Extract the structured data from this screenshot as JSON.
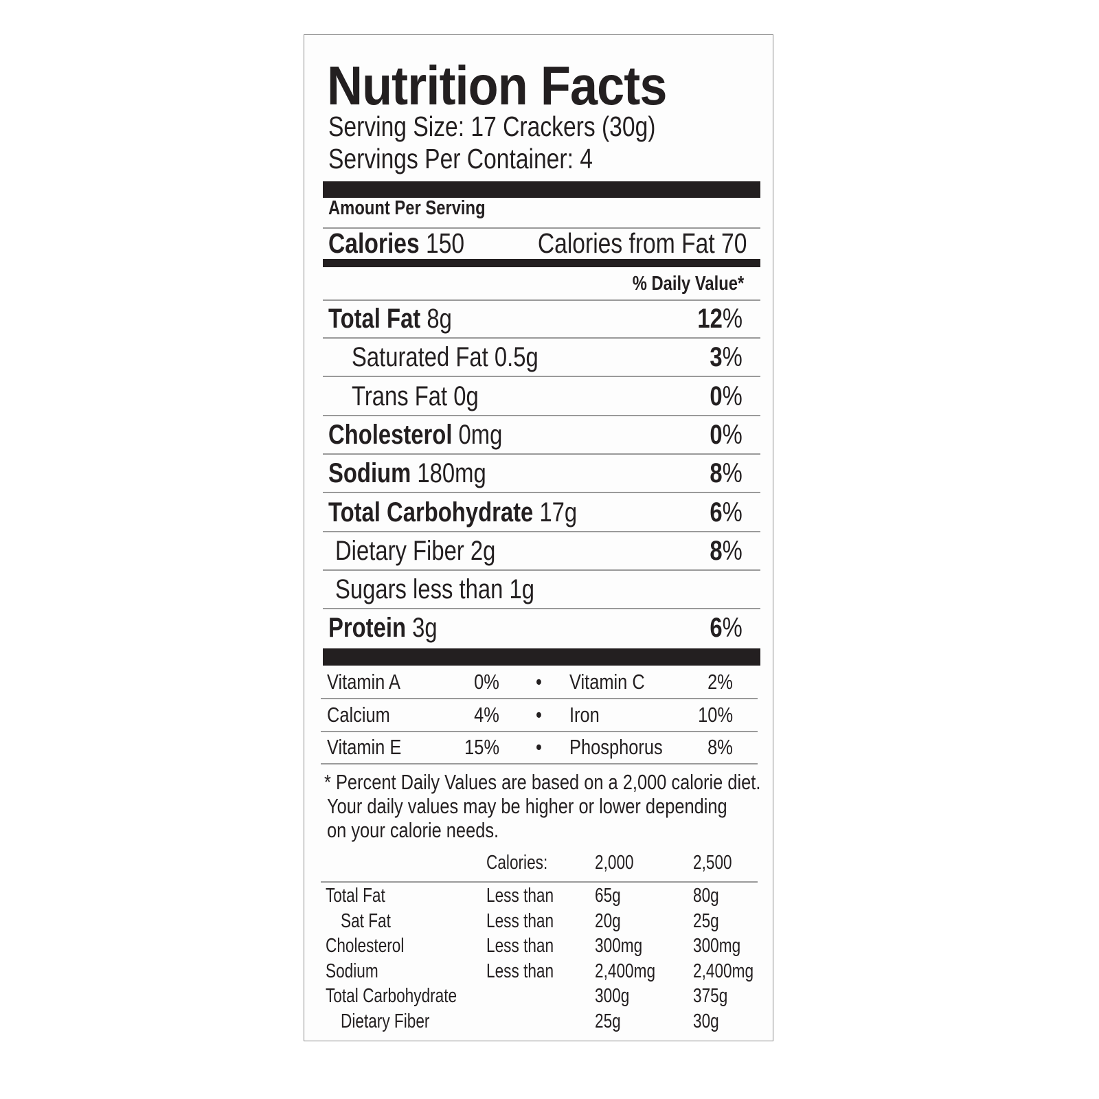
{
  "title": "Nutrition Facts",
  "serving_size": "Serving Size: 17 Crackers (30g)",
  "servings_per_container": "Servings Per Container: 4",
  "amount_per_serving": "Amount Per Serving",
  "calories": {
    "label": "Calories",
    "value": "150",
    "from_fat": "Calories from Fat 70"
  },
  "daily_value_header": "% Daily Value*",
  "nutrients": [
    {
      "name": "Total Fat",
      "amount": "8g",
      "dv": "12",
      "bold": true,
      "indent": 0
    },
    {
      "name": "Saturated Fat",
      "amount": "0.5g",
      "dv": "3",
      "bold": false,
      "indent": 1
    },
    {
      "name": "Trans Fat",
      "amount": "0g",
      "dv": "0",
      "bold": false,
      "indent": 1
    },
    {
      "name": "Cholesterol",
      "amount": "0mg",
      "dv": "0",
      "bold": true,
      "indent": 0
    },
    {
      "name": "Sodium",
      "amount": "180mg",
      "dv": "8",
      "bold": true,
      "indent": 0
    },
    {
      "name": "Total Carbohydrate",
      "amount": "17g",
      "dv": "6",
      "bold": true,
      "indent": 0
    },
    {
      "name": "Dietary Fiber",
      "amount": "2g",
      "dv": "8",
      "bold": false,
      "indent": 2
    },
    {
      "name": "Sugars",
      "amount": "less than 1g",
      "dv": "",
      "bold": false,
      "indent": 2
    },
    {
      "name": "Protein",
      "amount": "3g",
      "dv": "6",
      "bold": true,
      "indent": 0
    }
  ],
  "percent_sign": "%",
  "vitamins": [
    {
      "a": "Vitamin A",
      "a_dv": "0%",
      "b": "Vitamin C",
      "b_dv": "2%"
    },
    {
      "a": "Calcium",
      "a_dv": "4%",
      "b": "Iron",
      "b_dv": "10%"
    },
    {
      "a": "Vitamin E",
      "a_dv": "15%",
      "b": "Phosphorus",
      "b_dv": "8%"
    }
  ],
  "bullet": "•",
  "footnote": [
    "* Percent Daily Values are based on a 2,000 calorie diet.",
    "Your daily values may be higher  or lower depending",
    "on your calorie needs."
  ],
  "reference_table": {
    "header": [
      "",
      "Calories:",
      "2,000",
      "2,500"
    ],
    "rows": [
      [
        "Total Fat",
        "Less than",
        "65g",
        "80g"
      ],
      [
        "Sat Fat",
        "Less than",
        "20g",
        "25g"
      ],
      [
        "Cholesterol",
        "Less than",
        "300mg",
        "300mg"
      ],
      [
        "Sodium",
        "Less than",
        "2,400mg",
        "2,400mg"
      ],
      [
        "Total Carbohydrate",
        "",
        "300g",
        "375g"
      ],
      [
        "Dietary Fiber",
        "",
        "25g",
        "30g"
      ]
    ],
    "indented_rows": [
      1,
      5
    ]
  }
}
